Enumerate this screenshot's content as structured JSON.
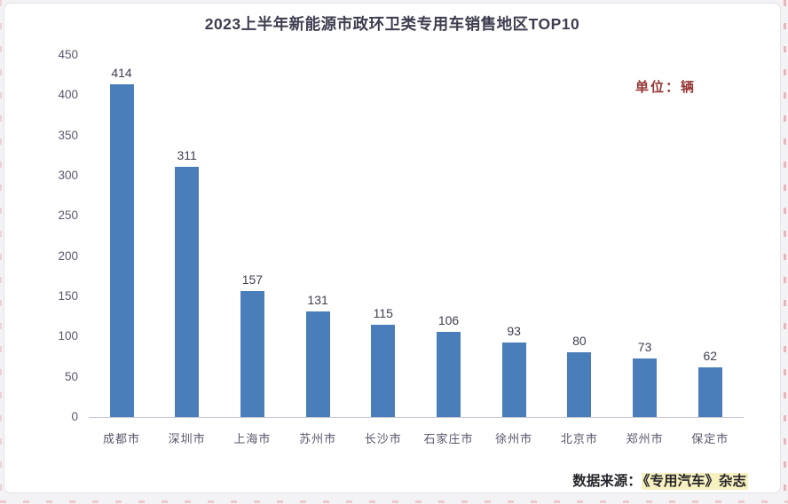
{
  "window": {
    "bg": "#f3f3f6",
    "card_bg": "#ffffff",
    "card_border": "#e4e3e9"
  },
  "chart_data": {
    "type": "bar",
    "title": "2023上半年新能源市政环卫类专用车销售地区TOP10",
    "unit_note": "单位：辆",
    "categories": [
      "成都市",
      "深圳市",
      "上海市",
      "苏州市",
      "长沙市",
      "石家庄市",
      "徐州市",
      "北京市",
      "郑州市",
      "保定市"
    ],
    "values": [
      414,
      311,
      157,
      131,
      115,
      106,
      93,
      80,
      73,
      62
    ],
    "ylim": [
      0,
      450
    ],
    "ytick_interval": 50,
    "grid": false,
    "legend_position": "none",
    "value_labels": true,
    "bar_color": "#4a7ebb"
  },
  "footer": {
    "source_label": "数据来源：",
    "source_name": "《专用汽车》杂志"
  },
  "styles": {
    "title_color": "#3d3d4f",
    "unit_color": "#953735",
    "axis_label_color": "#5b576b",
    "value_label_color": "#3f3f4f",
    "axis_line_color": "#c9c9d3",
    "highlight_color": "rgba(240,230,140,0.55)",
    "crop_mark_color": "#e06a6a"
  }
}
